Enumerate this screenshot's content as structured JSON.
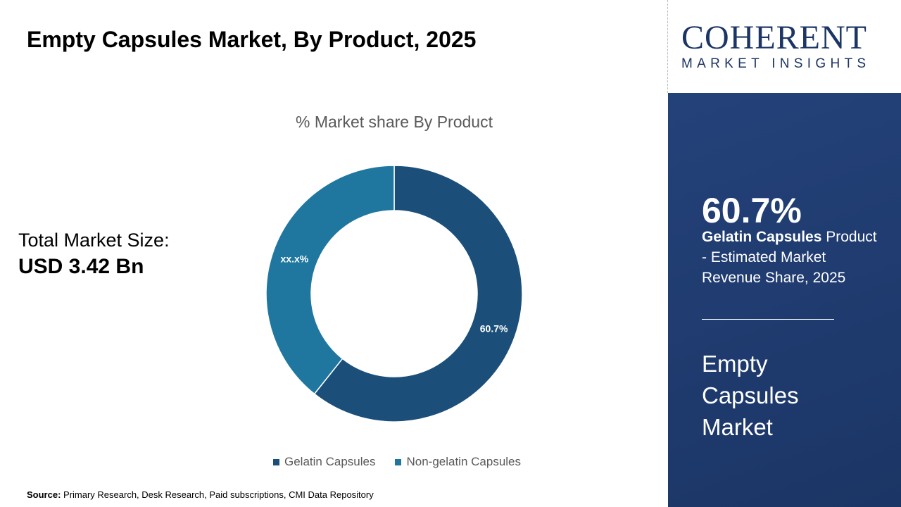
{
  "header": {
    "title": "Empty Capsules Market, By Product, 2025"
  },
  "left": {
    "total_label": "Total Market Size:",
    "total_value": "USD 3.42 Bn"
  },
  "logo": {
    "name": "COHERENT",
    "tagline": "MARKET INSIGHTS"
  },
  "panel": {
    "highlight": "60.7%",
    "desc_bold": "Gelatin Capsules",
    "desc_rest": " Product - Estimated Market Revenue Share, 2025",
    "market": "Empty Capsules Market"
  },
  "source": {
    "label": "Source:",
    "text": " Primary Research, Desk Research, Paid subscriptions, CMI Data Repository"
  },
  "chart_data": {
    "type": "pie",
    "donut": true,
    "title": "% Market share By Product",
    "categories": [
      "Gelatin Capsules",
      "Non-gelatin Capsules"
    ],
    "values": [
      60.7,
      39.3
    ],
    "data_labels": [
      "60.7%",
      "xx.x%"
    ],
    "colors": [
      "#1b4f7a",
      "#1f77a0"
    ],
    "legend": "bottom"
  }
}
